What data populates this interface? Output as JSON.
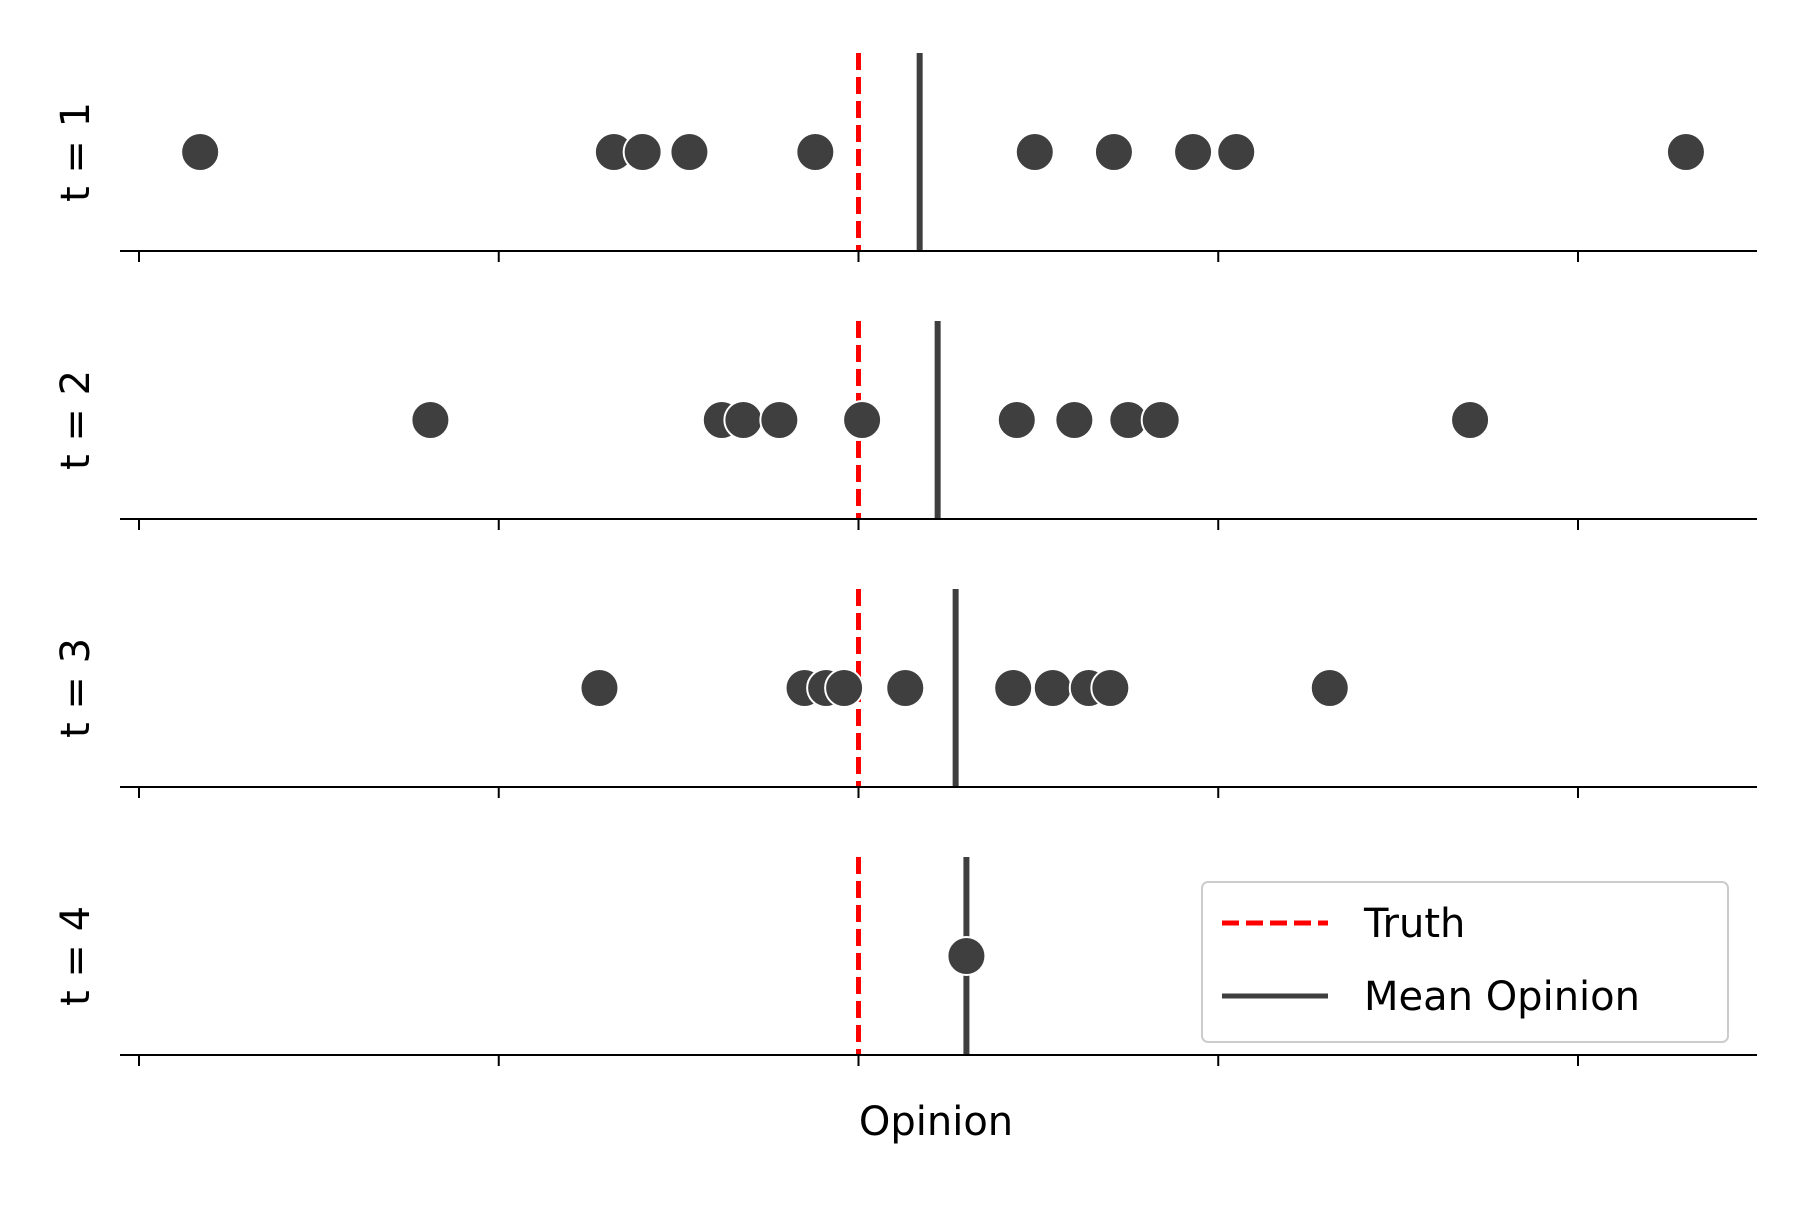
{
  "chart_data": {
    "type": "scatter",
    "layout": "stacked-strip-panels",
    "xlabel": "Opinion",
    "xlim": [
      -2.05,
      2.5
    ],
    "x_ticks": [
      -2,
      -1,
      0,
      1,
      2
    ],
    "x_tick_labels_shown": false,
    "truth": 0,
    "truth_color": "#ff0000",
    "point_color": "#3f3f3f",
    "mean_color": "#3f3f3f",
    "panels": [
      {
        "label": "t = 1",
        "opinions": [
          -1.83,
          -0.68,
          -0.6,
          -0.47,
          -0.12,
          0.49,
          0.71,
          0.93,
          1.05,
          2.3
        ],
        "mean": 0.17
      },
      {
        "label": "t = 2",
        "opinions": [
          -1.19,
          -0.38,
          -0.32,
          -0.22,
          0.01,
          0.44,
          0.6,
          0.75,
          0.84,
          1.7
        ],
        "mean": 0.22
      },
      {
        "label": "t = 3",
        "opinions": [
          -0.72,
          -0.15,
          -0.09,
          -0.04,
          0.13,
          0.43,
          0.54,
          0.64,
          0.7,
          1.31
        ],
        "mean": 0.27
      },
      {
        "label": "t = 4",
        "opinions": [
          0.3
        ],
        "mean": 0.3
      }
    ],
    "legend": {
      "position": "lower-right of last panel",
      "entries": [
        {
          "label": "Truth",
          "style": "dashed",
          "color": "#ff0000"
        },
        {
          "label": "Mean Opinion",
          "style": "solid",
          "color": "#3f3f3f"
        }
      ]
    }
  }
}
